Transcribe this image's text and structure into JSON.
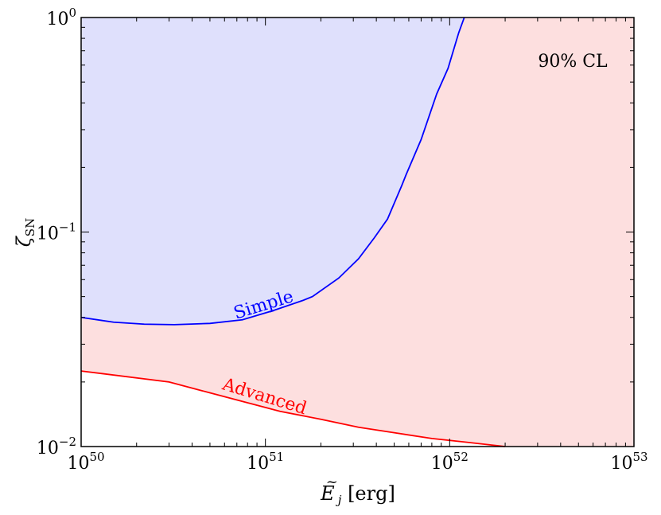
{
  "chart_data": {
    "type": "area",
    "xscale": "log",
    "yscale": "log",
    "xlim": [
      1e+50,
      1e+53
    ],
    "ylim": [
      0.01,
      1
    ],
    "xlabel": "Ẽ_j [erg]",
    "ylabel": "ζ_SN",
    "x_ticks": [
      {
        "base": "10",
        "exp": "50",
        "value": 1e+50
      },
      {
        "base": "10",
        "exp": "51",
        "value": 1e+51
      },
      {
        "base": "10",
        "exp": "52",
        "value": 1e+52
      },
      {
        "base": "10",
        "exp": "53",
        "value": 1e+53
      }
    ],
    "y_ticks": [
      {
        "base": "10",
        "exp": "−2",
        "value": 0.01
      },
      {
        "base": "10",
        "exp": "−1",
        "value": 0.1
      },
      {
        "base": "10",
        "exp": "0",
        "value": 1
      }
    ],
    "annotation": "90% CL",
    "series": [
      {
        "name": "Simple",
        "color": "#0000ff",
        "fill": "#dfe0fc",
        "points": [
          [
            1e+50,
            0.04
          ],
          [
            1.5e+50,
            0.038
          ],
          [
            2.2e+50,
            0.0372
          ],
          [
            3.2e+50,
            0.037
          ],
          [
            5e+50,
            0.0375
          ],
          [
            7.5e+50,
            0.039
          ],
          [
            1.1e+51,
            0.043
          ],
          [
            1.6e+51,
            0.048
          ],
          [
            1.8e+51,
            0.05
          ],
          [
            2.5e+51,
            0.061
          ],
          [
            3.2e+51,
            0.075
          ],
          [
            3.9e+51,
            0.094
          ],
          [
            4.6e+51,
            0.115
          ],
          [
            5.5e+51,
            0.165
          ],
          [
            5.8e+51,
            0.185
          ],
          [
            7e+51,
            0.27
          ],
          [
            8.5e+51,
            0.44
          ],
          [
            9.8e+51,
            0.58
          ],
          [
            1.12e+52,
            0.85
          ],
          [
            1.2e+52,
            1.0
          ]
        ]
      },
      {
        "name": "Advanced",
        "color": "#ff0000",
        "fill": "#fddfdf",
        "points": [
          [
            1e+50,
            0.0225
          ],
          [
            3e+50,
            0.02
          ],
          [
            5e+50,
            0.0178
          ],
          [
            8e+50,
            0.016
          ],
          [
            1.2e+51,
            0.0146
          ],
          [
            2e+51,
            0.0134
          ],
          [
            3.2e+51,
            0.0123
          ],
          [
            5e+51,
            0.0116
          ],
          [
            8e+51,
            0.0109
          ],
          [
            1.2e+52,
            0.0105
          ],
          [
            2e+52,
            0.01
          ]
        ]
      }
    ]
  }
}
